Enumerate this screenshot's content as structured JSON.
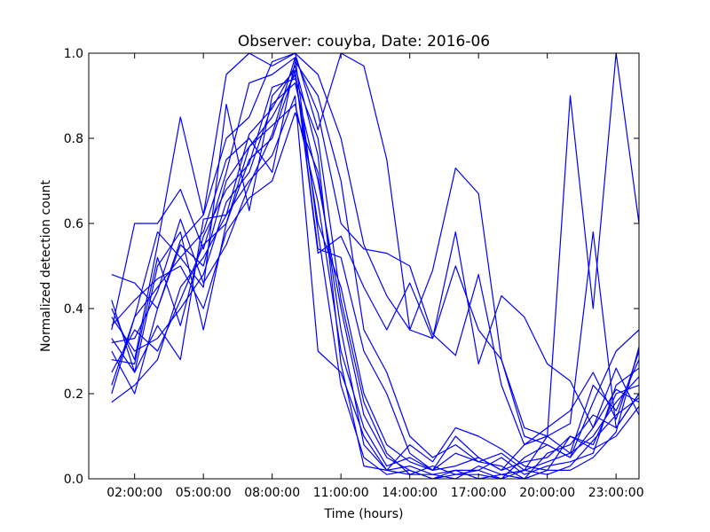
{
  "chart_data": {
    "type": "line",
    "title": "Observer: couyba, Date: 2016-06",
    "xlabel": "Time (hours)",
    "ylabel": "Normalized detection count",
    "xlim": [
      0,
      24
    ],
    "ylim": [
      0,
      1
    ],
    "x_ticks": [
      {
        "value": 2,
        "label": "02:00:00"
      },
      {
        "value": 5,
        "label": "05:00:00"
      },
      {
        "value": 8,
        "label": "08:00:00"
      },
      {
        "value": 11,
        "label": "11:00:00"
      },
      {
        "value": 14,
        "label": "14:00:00"
      },
      {
        "value": 17,
        "label": "17:00:00"
      },
      {
        "value": 20,
        "label": "20:00:00"
      },
      {
        "value": 23,
        "label": "23:00:00"
      }
    ],
    "y_ticks": [
      {
        "value": 0.0,
        "label": "0.0"
      },
      {
        "value": 0.2,
        "label": "0.2"
      },
      {
        "value": 0.4,
        "label": "0.4"
      },
      {
        "value": 0.6,
        "label": "0.6"
      },
      {
        "value": 0.8,
        "label": "0.8"
      },
      {
        "value": 1.0,
        "label": "1.0"
      }
    ],
    "grid": false,
    "line_color": "#0000ff",
    "x": [
      1,
      2,
      3,
      4,
      5,
      6,
      7,
      8,
      9,
      10,
      11,
      12,
      13,
      14,
      15,
      16,
      17,
      18,
      19,
      20,
      21,
      22,
      23,
      24
    ],
    "series": [
      {
        "values": [
          0.48,
          0.46,
          0.4,
          0.56,
          0.62,
          0.8,
          0.85,
          0.98,
          1.0,
          0.95,
          0.8,
          0.55,
          0.43,
          0.35,
          0.33,
          0.5,
          0.35,
          0.28,
          0.1,
          0.08,
          0.05,
          0.18,
          0.3,
          0.35
        ]
      },
      {
        "values": [
          0.4,
          0.28,
          0.55,
          0.85,
          0.62,
          0.95,
          1.0,
          0.97,
          1.0,
          0.82,
          1.0,
          0.97,
          0.75,
          0.35,
          0.49,
          0.73,
          0.67,
          0.28,
          0.12,
          0.1,
          0.9,
          0.4,
          1.0,
          0.6
        ]
      },
      {
        "values": [
          0.35,
          0.6,
          0.6,
          0.68,
          0.54,
          0.72,
          0.93,
          0.95,
          0.99,
          0.86,
          0.6,
          0.54,
          0.53,
          0.5,
          0.34,
          0.29,
          0.48,
          0.22,
          0.08,
          0.1,
          0.13,
          0.58,
          0.12,
          0.2
        ]
      },
      {
        "values": [
          0.2,
          0.38,
          0.58,
          0.52,
          0.45,
          0.88,
          0.63,
          0.9,
          0.96,
          0.53,
          0.57,
          0.45,
          0.35,
          0.46,
          0.33,
          0.58,
          0.27,
          0.43,
          0.38,
          0.27,
          0.23,
          0.12,
          0.21,
          0.18
        ]
      },
      {
        "values": [
          0.33,
          0.25,
          0.5,
          0.58,
          0.35,
          0.6,
          0.75,
          0.8,
          0.96,
          0.54,
          0.52,
          0.3,
          0.2,
          0.06,
          0.02,
          0.1,
          0.05,
          0.02,
          0.08,
          0.12,
          0.16,
          0.25,
          0.14,
          0.3
        ]
      },
      {
        "values": [
          0.22,
          0.38,
          0.45,
          0.52,
          0.58,
          0.75,
          0.8,
          0.72,
          0.98,
          0.9,
          0.7,
          0.35,
          0.25,
          0.1,
          0.05,
          0.08,
          0.04,
          0.06,
          0.02,
          0.1,
          0.06,
          0.22,
          0.16,
          0.28
        ]
      },
      {
        "values": [
          0.3,
          0.2,
          0.4,
          0.55,
          0.5,
          0.7,
          0.78,
          0.85,
          0.95,
          0.6,
          0.45,
          0.2,
          0.08,
          0.04,
          0.02,
          0.03,
          0.05,
          0.02,
          0.04,
          0.05,
          0.1,
          0.08,
          0.2,
          0.22
        ]
      },
      {
        "values": [
          0.38,
          0.3,
          0.33,
          0.4,
          0.48,
          0.65,
          0.72,
          0.88,
          0.93,
          0.7,
          0.4,
          0.15,
          0.05,
          0.02,
          0.0,
          0.02,
          0.02,
          0.0,
          0.05,
          0.08,
          0.05,
          0.12,
          0.26,
          0.15
        ]
      },
      {
        "values": [
          0.18,
          0.22,
          0.28,
          0.45,
          0.52,
          0.62,
          0.7,
          0.76,
          0.9,
          0.3,
          0.25,
          0.1,
          0.02,
          0.03,
          0.01,
          0.0,
          0.03,
          0.01,
          0.02,
          0.04,
          0.06,
          0.1,
          0.18,
          0.24
        ]
      },
      {
        "values": [
          0.25,
          0.35,
          0.3,
          0.42,
          0.55,
          0.6,
          0.78,
          0.83,
          0.88,
          0.65,
          0.3,
          0.12,
          0.03,
          0.05,
          0.02,
          0.06,
          0.04,
          0.03,
          0.0,
          0.06,
          0.08,
          0.15,
          0.12,
          0.2
        ]
      },
      {
        "values": [
          0.36,
          0.42,
          0.47,
          0.5,
          0.4,
          0.58,
          0.66,
          0.7,
          0.86,
          0.72,
          0.35,
          0.08,
          0.02,
          0.08,
          0.04,
          0.12,
          0.1,
          0.07,
          0.03,
          0.02,
          0.1,
          0.07,
          0.1,
          0.17
        ]
      },
      {
        "values": [
          0.28,
          0.27,
          0.52,
          0.36,
          0.57,
          0.68,
          0.74,
          0.92,
          0.94,
          0.8,
          0.42,
          0.18,
          0.06,
          0.01,
          0.03,
          0.01,
          0.02,
          0.05,
          0.01,
          0.03,
          0.04,
          0.06,
          0.22,
          0.26
        ]
      },
      {
        "values": [
          0.32,
          0.33,
          0.44,
          0.61,
          0.46,
          0.55,
          0.69,
          0.81,
          0.99,
          0.58,
          0.22,
          0.05,
          0.01,
          0.02,
          0.0,
          0.01,
          0.01,
          0.0,
          0.02,
          0.01,
          0.03,
          0.09,
          0.15,
          0.19
        ]
      },
      {
        "values": [
          0.42,
          0.25,
          0.36,
          0.28,
          0.61,
          0.62,
          0.81,
          0.87,
          0.97,
          0.76,
          0.27,
          0.03,
          0.02,
          0.01,
          0.01,
          0.02,
          0.0,
          0.01,
          0.0,
          0.02,
          0.02,
          0.05,
          0.11,
          0.31
        ]
      }
    ]
  }
}
